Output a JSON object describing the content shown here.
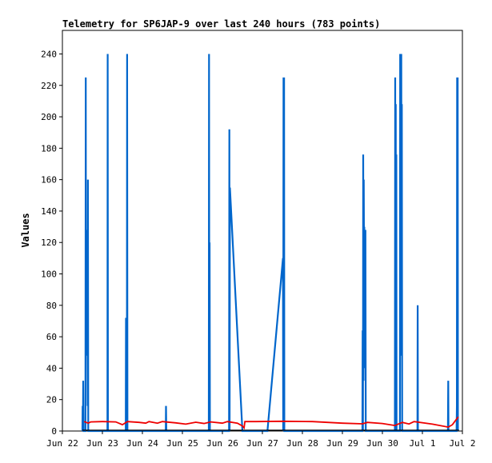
{
  "chart_data": {
    "type": "line",
    "title": "Telemetry for SP6JAP-9 over last 240 hours (783 points)",
    "xlabel": "",
    "ylabel": "Values",
    "xlim": [
      "2025-06-22T00:00",
      "2025-07-02T00:00"
    ],
    "ylim": [
      0,
      255
    ],
    "x_ticks": [
      "Jun 22",
      "Jun 23",
      "Jun 24",
      "Jun 25",
      "Jun 26",
      "Jun 27",
      "Jun 28",
      "Jun 29",
      "Jun 30",
      "Jul 1",
      "Jul 2"
    ],
    "y_ticks": [
      0,
      20,
      40,
      60,
      80,
      100,
      120,
      140,
      160,
      180,
      200,
      220,
      240
    ],
    "grid": false,
    "colors": {
      "blue_series": "#0066cc",
      "red_series": "#ee0000",
      "black_series": "#000000"
    },
    "series": [
      {
        "color": "#0066cc",
        "points": [
          [
            "2025-06-22T12:00",
            0
          ],
          [
            "2025-06-22T12:10",
            16
          ],
          [
            "2025-06-22T12:20",
            0
          ],
          [
            "2025-06-22T12:30",
            32
          ],
          [
            "2025-06-22T12:40",
            0
          ],
          [
            "2025-06-22T13:50",
            0
          ],
          [
            "2025-06-22T14:00",
            225
          ],
          [
            "2025-06-22T14:10",
            60
          ],
          [
            "2025-06-22T14:20",
            128
          ],
          [
            "2025-06-22T14:30",
            64
          ],
          [
            "2025-06-22T14:40",
            112
          ],
          [
            "2025-06-22T14:50",
            48
          ],
          [
            "2025-06-22T15:00",
            80
          ],
          [
            "2025-06-22T15:10",
            16
          ],
          [
            "2025-06-22T15:20",
            160
          ],
          [
            "2025-06-22T15:30",
            0
          ],
          [
            "2025-06-23T03:00",
            0
          ],
          [
            "2025-06-23T03:10",
            240
          ],
          [
            "2025-06-23T03:20",
            0
          ],
          [
            "2025-06-23T14:00",
            0
          ],
          [
            "2025-06-23T14:10",
            72
          ],
          [
            "2025-06-23T14:20",
            0
          ],
          [
            "2025-06-23T14:40",
            0
          ],
          [
            "2025-06-23T14:50",
            240
          ],
          [
            "2025-06-23T15:00",
            0
          ],
          [
            "2025-06-24T14:00",
            0
          ],
          [
            "2025-06-24T14:10",
            16
          ],
          [
            "2025-06-24T14:20",
            0
          ],
          [
            "2025-06-25T15:50",
            0
          ],
          [
            "2025-06-25T16:00",
            240
          ],
          [
            "2025-06-25T16:10",
            0
          ],
          [
            "2025-06-25T16:20",
            120
          ],
          [
            "2025-06-25T16:30",
            0
          ],
          [
            "2025-06-26T04:00",
            0
          ],
          [
            "2025-06-26T04:10",
            192
          ],
          [
            "2025-06-26T04:20",
            0
          ],
          [
            "2025-06-26T04:30",
            155
          ],
          [
            "2025-06-26T12:00",
            0
          ],
          [
            "2025-06-27T03:00",
            0
          ],
          [
            "2025-06-27T12:20",
            110
          ],
          [
            "2025-06-27T12:30",
            0
          ],
          [
            "2025-06-27T12:40",
            225
          ],
          [
            "2025-06-27T12:50",
            0
          ],
          [
            "2025-06-27T13:00",
            225
          ],
          [
            "2025-06-27T13:10",
            0
          ],
          [
            "2025-06-29T12:00",
            0
          ],
          [
            "2025-06-29T12:10",
            64
          ],
          [
            "2025-06-29T12:20",
            0
          ],
          [
            "2025-06-29T12:30",
            176
          ],
          [
            "2025-06-29T12:40",
            32
          ],
          [
            "2025-06-29T12:50",
            160
          ],
          [
            "2025-06-29T13:00",
            100
          ],
          [
            "2025-06-29T13:10",
            130
          ],
          [
            "2025-06-29T13:20",
            40
          ],
          [
            "2025-06-29T13:30",
            72
          ],
          [
            "2025-06-29T13:40",
            48
          ],
          [
            "2025-06-29T13:50",
            128
          ],
          [
            "2025-06-29T14:00",
            0
          ],
          [
            "2025-06-30T07:30",
            0
          ],
          [
            "2025-06-30T07:40",
            225
          ],
          [
            "2025-06-30T07:50",
            0
          ],
          [
            "2025-06-30T08:00",
            208
          ],
          [
            "2025-06-30T08:10",
            0
          ],
          [
            "2025-06-30T08:20",
            176
          ],
          [
            "2025-06-30T08:30",
            0
          ],
          [
            "2025-06-30T10:30",
            0
          ],
          [
            "2025-06-30T10:40",
            240
          ],
          [
            "2025-06-30T10:50",
            176
          ],
          [
            "2025-06-30T11:00",
            240
          ],
          [
            "2025-06-30T11:10",
            60
          ],
          [
            "2025-06-30T11:20",
            240
          ],
          [
            "2025-06-30T11:30",
            48
          ],
          [
            "2025-06-30T11:40",
            208
          ],
          [
            "2025-06-30T11:50",
            0
          ],
          [
            "2025-06-30T21:00",
            0
          ],
          [
            "2025-06-30T21:10",
            80
          ],
          [
            "2025-06-30T21:20",
            0
          ],
          [
            "2025-07-01T15:20",
            0
          ],
          [
            "2025-07-01T15:30",
            32
          ],
          [
            "2025-07-01T15:40",
            0
          ],
          [
            "2025-07-01T20:30",
            0
          ],
          [
            "2025-07-01T20:40",
            16
          ],
          [
            "2025-07-01T20:50",
            225
          ],
          [
            "2025-07-01T21:00",
            0
          ],
          [
            "2025-07-01T21:10",
            225
          ],
          [
            "2025-07-01T21:20",
            0
          ]
        ]
      },
      {
        "color": "#ee0000",
        "points": [
          [
            "2025-06-22T13:00",
            6
          ],
          [
            "2025-06-22T15:30",
            5
          ],
          [
            "2025-06-22T17:00",
            5.8
          ],
          [
            "2025-06-23T00:00",
            6
          ],
          [
            "2025-06-23T08:00",
            5.8
          ],
          [
            "2025-06-23T12:00",
            4
          ],
          [
            "2025-06-23T15:00",
            6
          ],
          [
            "2025-06-23T22:00",
            5.5
          ],
          [
            "2025-06-24T02:00",
            5
          ],
          [
            "2025-06-24T04:00",
            6
          ],
          [
            "2025-06-24T09:00",
            5
          ],
          [
            "2025-06-24T12:00",
            6
          ],
          [
            "2025-06-24T20:00",
            5.2
          ],
          [
            "2025-06-25T02:00",
            4.4
          ],
          [
            "2025-06-25T08:00",
            5.6
          ],
          [
            "2025-06-25T13:00",
            4.8
          ],
          [
            "2025-06-25T17:00",
            5.8
          ],
          [
            "2025-06-26T00:00",
            5
          ],
          [
            "2025-06-26T03:00",
            6
          ],
          [
            "2025-06-26T09:00",
            5
          ],
          [
            "2025-06-26T12:00",
            3.2
          ],
          [
            "2025-06-26T13:00",
            2
          ],
          [
            "2025-06-26T13:30",
            6
          ],
          [
            "2025-06-26T20:00",
            6
          ],
          [
            "2025-06-27T12:00",
            6.2
          ],
          [
            "2025-06-28T06:00",
            6
          ],
          [
            "2025-06-29T00:00",
            5
          ],
          [
            "2025-06-29T12:00",
            4.6
          ],
          [
            "2025-06-29T15:00",
            5.5
          ],
          [
            "2025-06-30T00:00",
            4.8
          ],
          [
            "2025-06-30T07:30",
            3.5
          ],
          [
            "2025-06-30T12:00",
            5.5
          ],
          [
            "2025-06-30T16:00",
            4.5
          ],
          [
            "2025-06-30T19:00",
            6
          ],
          [
            "2025-07-01T06:00",
            4.4
          ],
          [
            "2025-07-01T15:30",
            2.5
          ],
          [
            "2025-07-01T18:00",
            4
          ],
          [
            "2025-07-01T21:30",
            9
          ]
        ]
      },
      {
        "color": "#000000",
        "points": [
          [
            "2025-06-22T12:00",
            0.5
          ],
          [
            "2025-07-01T22:00",
            0.5
          ]
        ]
      }
    ]
  }
}
